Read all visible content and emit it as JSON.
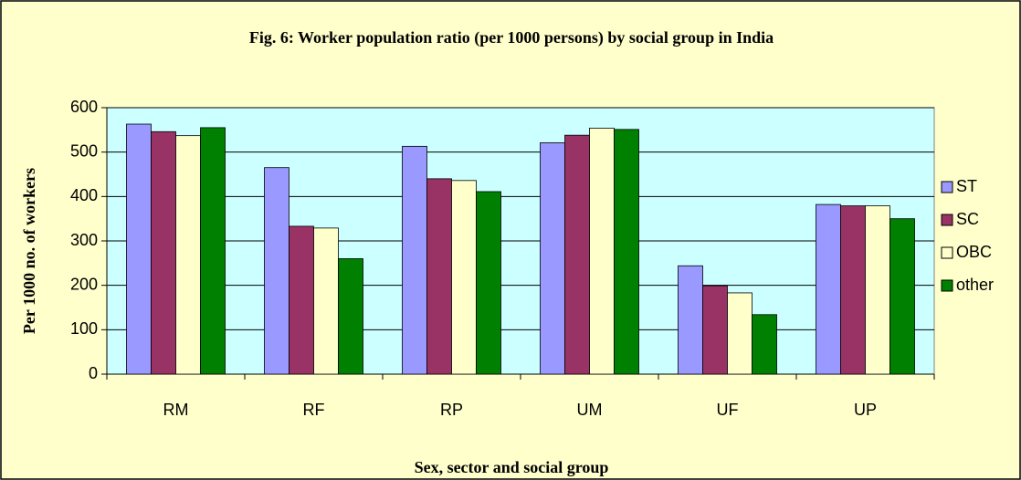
{
  "chart_data": {
    "type": "bar",
    "title": "Fig. 6: Worker  population ratio (per 1000 persons) by social group in India",
    "x_label": "Sex, sector and social group",
    "y_label": "Per 1000 no. of workers",
    "categories": [
      "RM",
      "RF",
      "RP",
      "UM",
      "UF",
      "UP"
    ],
    "series": [
      {
        "name": "ST",
        "color": "#9999ff",
        "values": [
          563,
          465,
          513,
          521,
          244,
          382
        ]
      },
      {
        "name": "SC",
        "color": "#993366",
        "values": [
          546,
          333,
          440,
          538,
          199,
          379
        ]
      },
      {
        "name": "OBC",
        "color": "#ffffcc",
        "values": [
          537,
          329,
          436,
          554,
          183,
          379
        ]
      },
      {
        "name": "other",
        "color": "#008000",
        "values": [
          555,
          260,
          411,
          551,
          134,
          350
        ]
      }
    ],
    "ylim": [
      0,
      600
    ],
    "yticks": [
      0,
      100,
      200,
      300,
      400,
      500,
      600
    ],
    "grid": true,
    "legend": "right"
  }
}
